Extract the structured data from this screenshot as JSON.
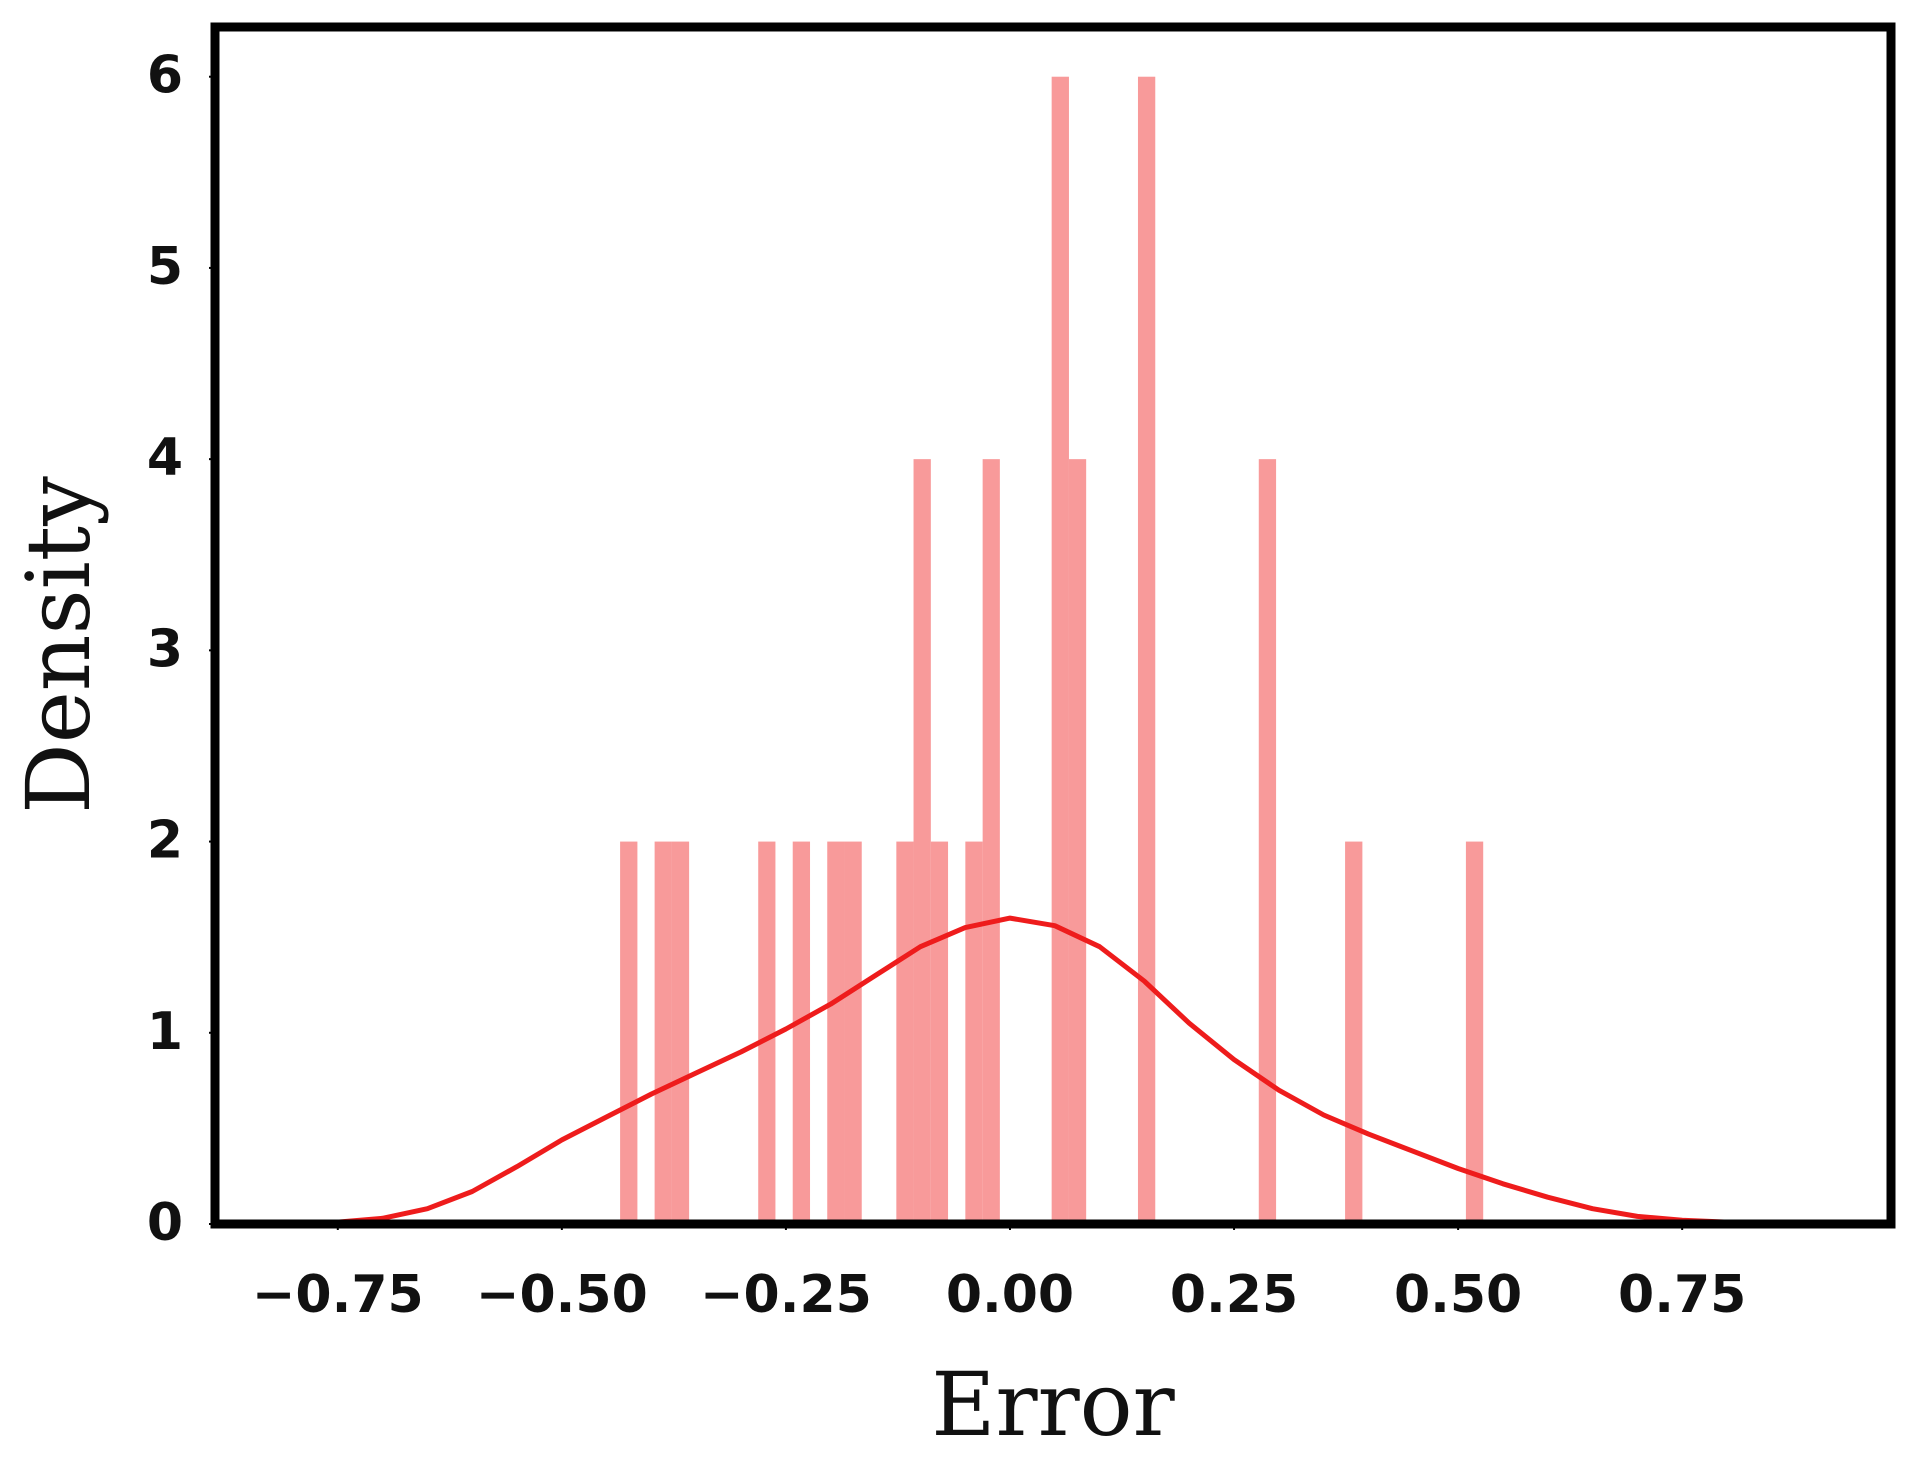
{
  "chart_data": {
    "type": "histogram",
    "xlabel": "Error",
    "ylabel": "Density",
    "xlim": [
      -0.887,
      0.983
    ],
    "ylim": [
      0,
      6.26
    ],
    "xticks": [
      {
        "value": -0.75,
        "label": "−0.75"
      },
      {
        "value": -0.5,
        "label": "−0.50"
      },
      {
        "value": -0.25,
        "label": "−0.25"
      },
      {
        "value": 0,
        "label": "0.00"
      },
      0.25,
      {
        "value": 0.5,
        "label": "0.50"
      },
      0.75
    ],
    "yticks": [
      0,
      1,
      2,
      3,
      4,
      5,
      6
    ],
    "color": "#f89a9a",
    "bins": [
      -0.435,
      -0.4157,
      -0.3965,
      -0.3772,
      -0.358,
      -0.3387,
      -0.3194,
      -0.3002,
      -0.2809,
      -0.2617,
      -0.2424,
      -0.2231,
      -0.2039,
      -0.1846,
      -0.1654,
      -0.1461,
      -0.1268,
      -0.1076,
      -0.0883,
      -0.0691,
      -0.0498,
      -0.0305,
      -0.0113,
      0.008,
      0.0272,
      0.0465,
      0.0658,
      0.085,
      0.1043,
      0.1235,
      0.1428,
      0.1621,
      0.1813,
      0.2006,
      0.2198,
      0.2391,
      0.2584,
      0.2776,
      0.2969,
      0.3161,
      0.3354,
      0.3547,
      0.3739,
      0.3932,
      0.4124,
      0.4317,
      0.451,
      0.4702,
      0.4895,
      0.5087,
      0.528
    ],
    "values": [
      2,
      0,
      2,
      2,
      0,
      0,
      0,
      0,
      2,
      0,
      2,
      0,
      2,
      2,
      0,
      0,
      2,
      4,
      2,
      0,
      2,
      4,
      0,
      0,
      0,
      6,
      4,
      0,
      0,
      0,
      6,
      0,
      0,
      0,
      0,
      0,
      0,
      4,
      0,
      0,
      0,
      0,
      2,
      0,
      0,
      0,
      0,
      0,
      0,
      2
    ],
    "kde": {
      "color": "#ee1c1c",
      "x": [
        -0.8,
        -0.75,
        -0.7,
        -0.65,
        -0.6,
        -0.55,
        -0.5,
        -0.45,
        -0.4,
        -0.35,
        -0.3,
        -0.25,
        -0.2,
        -0.15,
        -0.1,
        -0.05,
        0.0,
        0.05,
        0.1,
        0.15,
        0.2,
        0.25,
        0.3,
        0.35,
        0.4,
        0.45,
        0.5,
        0.55,
        0.6,
        0.65,
        0.7,
        0.75,
        0.8,
        0.85
      ],
      "values": [
        0.0,
        0.01,
        0.03,
        0.08,
        0.17,
        0.3,
        0.44,
        0.56,
        0.68,
        0.79,
        0.9,
        1.02,
        1.15,
        1.3,
        1.45,
        1.55,
        1.6,
        1.56,
        1.45,
        1.27,
        1.05,
        0.86,
        0.7,
        0.57,
        0.47,
        0.38,
        0.29,
        0.21,
        0.14,
        0.08,
        0.04,
        0.02,
        0.01,
        0.0
      ]
    }
  }
}
